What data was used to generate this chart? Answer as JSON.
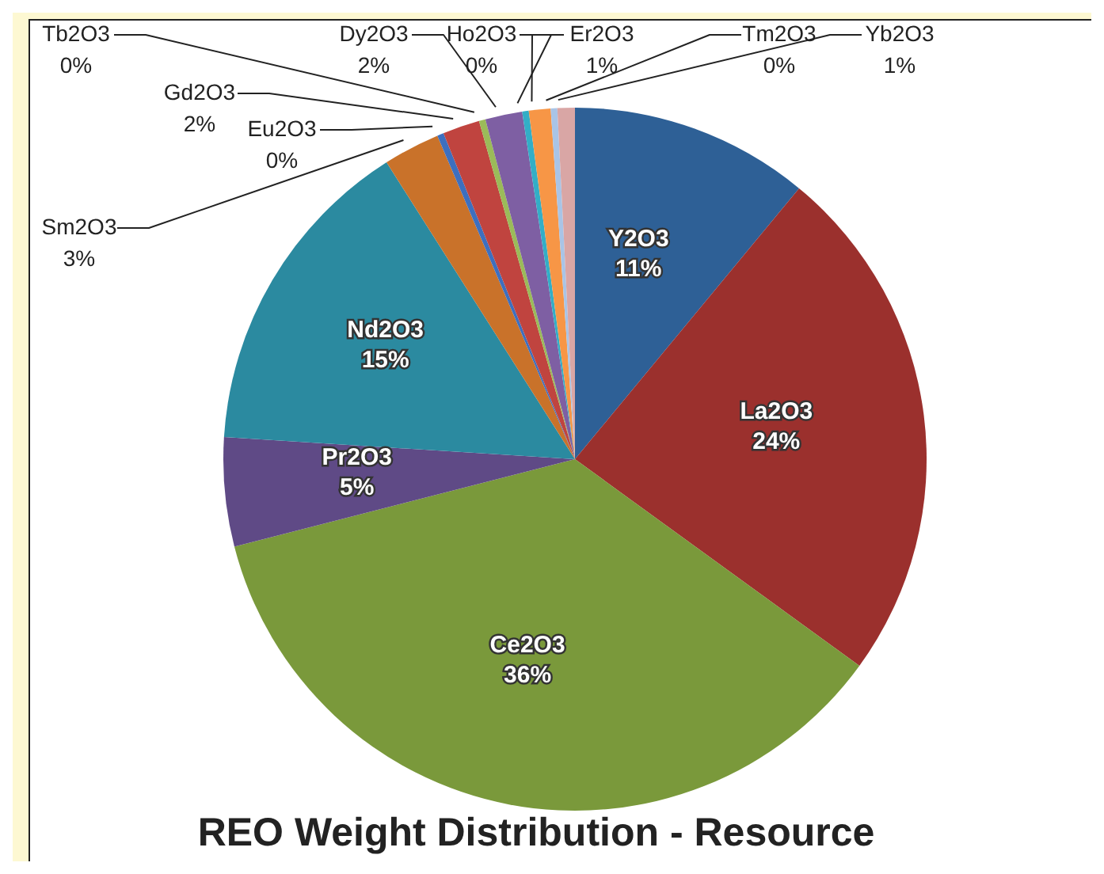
{
  "chart_data": {
    "type": "pie",
    "title": "REO Weight Distribution - Resource",
    "categories": [
      "Y2O3",
      "La2O3",
      "Ce2O3",
      "Pr2O3",
      "Nd2O3",
      "Sm2O3",
      "Eu2O3",
      "Gd2O3",
      "Tb2O3",
      "Dy2O3",
      "Ho2O3",
      "Er2O3",
      "Tm2O3",
      "Yb2O3"
    ],
    "values": [
      11,
      24,
      36,
      5,
      15,
      2.6,
      0.3,
      1.7,
      0.3,
      1.7,
      0.3,
      1,
      0.3,
      0.8
    ],
    "value_labels": [
      "11%",
      "24%",
      "36%",
      "5%",
      "15%",
      "3%",
      "0%",
      "2%",
      "0%",
      "2%",
      "0%",
      "1%",
      "0%",
      "1%"
    ],
    "colors": [
      "#2e6096",
      "#9b302d",
      "#7a993b",
      "#5f4a86",
      "#2b8aa0",
      "#c9722a",
      "#3d6fbf",
      "#c0443f",
      "#9bbb59",
      "#7e5fa3",
      "#33aec6",
      "#f79646",
      "#a9c4e6",
      "#d9a6a5"
    ]
  }
}
